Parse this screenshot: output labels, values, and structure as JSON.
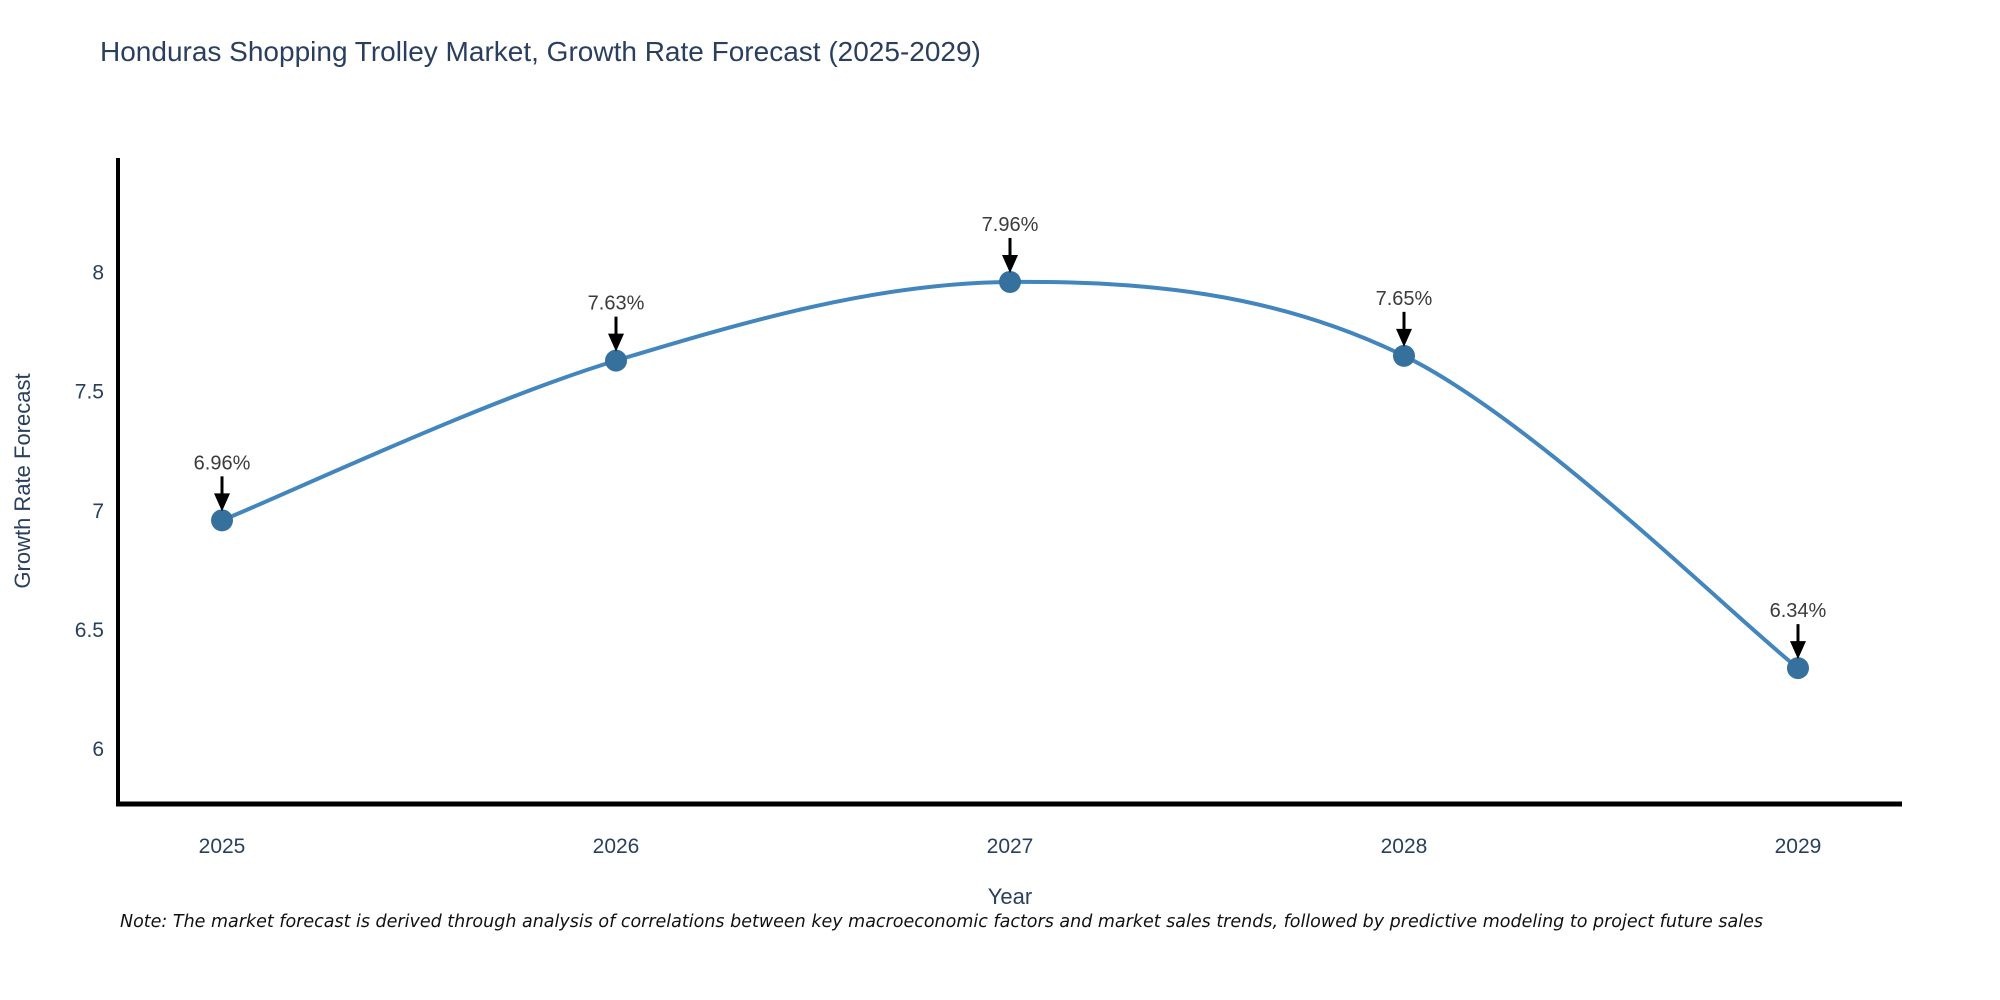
{
  "title": "Honduras Shopping Trolley Market, Growth Rate Forecast (2025-2029)",
  "note": "Note: The market forecast is derived through analysis of correlations between key macroeconomic factors and market sales trends, followed by predictive modeling to project future sales",
  "chart_data": {
    "type": "line",
    "title": "Honduras Shopping Trolley Market, Growth Rate Forecast (2025-2029)",
    "xlabel": "Year",
    "ylabel": "Growth Rate Forecast",
    "categories": [
      "2025",
      "2026",
      "2027",
      "2028",
      "2029"
    ],
    "x": [
      2025,
      2026,
      2027,
      2028,
      2029
    ],
    "series": [
      {
        "name": "Growth Rate Forecast",
        "values": [
          6.96,
          7.63,
          7.96,
          7.65,
          6.34
        ]
      }
    ],
    "annotations": [
      "6.96%",
      "7.63%",
      "7.96%",
      "7.65%",
      "6.34%"
    ],
    "yticks": [
      6,
      6.5,
      7,
      7.5,
      8
    ],
    "ytick_labels": [
      "6",
      "6.5",
      "7",
      "7.5",
      "8"
    ],
    "xlim": [
      2024.736,
      2029.264
    ],
    "ylim": [
      5.77,
      8.48
    ],
    "grid": false,
    "legend_position": "none",
    "curve": "spline",
    "colors": {
      "line": "#4286bd",
      "marker": "#36719e",
      "arrow": "#000000",
      "axis_line": "#000000",
      "axis_text": "#2a3f5f",
      "annotation_text": "#3b3b3b",
      "background": "#ffffff"
    }
  }
}
